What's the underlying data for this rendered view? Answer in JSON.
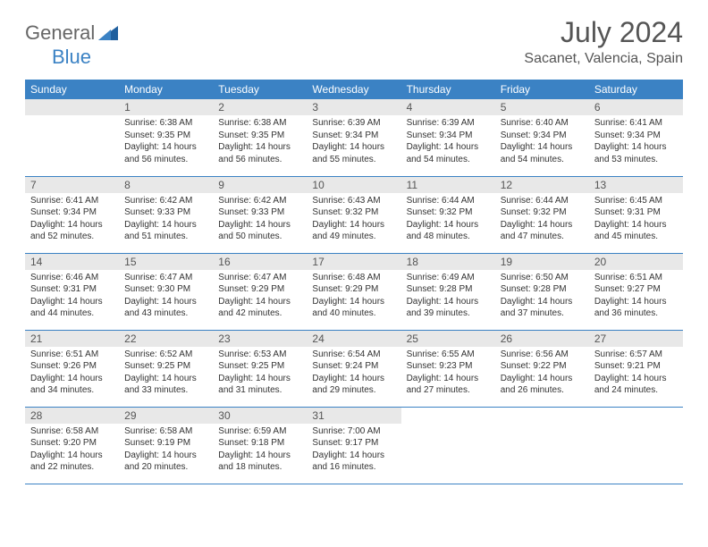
{
  "brand": {
    "part1": "General",
    "part2": "Blue"
  },
  "title": "July 2024",
  "location": "Sacanet, Valencia, Spain",
  "colors": {
    "header_bg": "#3b82c4",
    "header_text": "#ffffff",
    "daynum_bg": "#e8e8e8",
    "text": "#333333",
    "title_color": "#555555"
  },
  "weekdays": [
    "Sunday",
    "Monday",
    "Tuesday",
    "Wednesday",
    "Thursday",
    "Friday",
    "Saturday"
  ],
  "weeks": [
    [
      null,
      {
        "n": "1",
        "sr": "6:38 AM",
        "ss": "9:35 PM",
        "dl": "14 hours and 56 minutes."
      },
      {
        "n": "2",
        "sr": "6:38 AM",
        "ss": "9:35 PM",
        "dl": "14 hours and 56 minutes."
      },
      {
        "n": "3",
        "sr": "6:39 AM",
        "ss": "9:34 PM",
        "dl": "14 hours and 55 minutes."
      },
      {
        "n": "4",
        "sr": "6:39 AM",
        "ss": "9:34 PM",
        "dl": "14 hours and 54 minutes."
      },
      {
        "n": "5",
        "sr": "6:40 AM",
        "ss": "9:34 PM",
        "dl": "14 hours and 54 minutes."
      },
      {
        "n": "6",
        "sr": "6:41 AM",
        "ss": "9:34 PM",
        "dl": "14 hours and 53 minutes."
      }
    ],
    [
      {
        "n": "7",
        "sr": "6:41 AM",
        "ss": "9:34 PM",
        "dl": "14 hours and 52 minutes."
      },
      {
        "n": "8",
        "sr": "6:42 AM",
        "ss": "9:33 PM",
        "dl": "14 hours and 51 minutes."
      },
      {
        "n": "9",
        "sr": "6:42 AM",
        "ss": "9:33 PM",
        "dl": "14 hours and 50 minutes."
      },
      {
        "n": "10",
        "sr": "6:43 AM",
        "ss": "9:32 PM",
        "dl": "14 hours and 49 minutes."
      },
      {
        "n": "11",
        "sr": "6:44 AM",
        "ss": "9:32 PM",
        "dl": "14 hours and 48 minutes."
      },
      {
        "n": "12",
        "sr": "6:44 AM",
        "ss": "9:32 PM",
        "dl": "14 hours and 47 minutes."
      },
      {
        "n": "13",
        "sr": "6:45 AM",
        "ss": "9:31 PM",
        "dl": "14 hours and 45 minutes."
      }
    ],
    [
      {
        "n": "14",
        "sr": "6:46 AM",
        "ss": "9:31 PM",
        "dl": "14 hours and 44 minutes."
      },
      {
        "n": "15",
        "sr": "6:47 AM",
        "ss": "9:30 PM",
        "dl": "14 hours and 43 minutes."
      },
      {
        "n": "16",
        "sr": "6:47 AM",
        "ss": "9:29 PM",
        "dl": "14 hours and 42 minutes."
      },
      {
        "n": "17",
        "sr": "6:48 AM",
        "ss": "9:29 PM",
        "dl": "14 hours and 40 minutes."
      },
      {
        "n": "18",
        "sr": "6:49 AM",
        "ss": "9:28 PM",
        "dl": "14 hours and 39 minutes."
      },
      {
        "n": "19",
        "sr": "6:50 AM",
        "ss": "9:28 PM",
        "dl": "14 hours and 37 minutes."
      },
      {
        "n": "20",
        "sr": "6:51 AM",
        "ss": "9:27 PM",
        "dl": "14 hours and 36 minutes."
      }
    ],
    [
      {
        "n": "21",
        "sr": "6:51 AM",
        "ss": "9:26 PM",
        "dl": "14 hours and 34 minutes."
      },
      {
        "n": "22",
        "sr": "6:52 AM",
        "ss": "9:25 PM",
        "dl": "14 hours and 33 minutes."
      },
      {
        "n": "23",
        "sr": "6:53 AM",
        "ss": "9:25 PM",
        "dl": "14 hours and 31 minutes."
      },
      {
        "n": "24",
        "sr": "6:54 AM",
        "ss": "9:24 PM",
        "dl": "14 hours and 29 minutes."
      },
      {
        "n": "25",
        "sr": "6:55 AM",
        "ss": "9:23 PM",
        "dl": "14 hours and 27 minutes."
      },
      {
        "n": "26",
        "sr": "6:56 AM",
        "ss": "9:22 PM",
        "dl": "14 hours and 26 minutes."
      },
      {
        "n": "27",
        "sr": "6:57 AM",
        "ss": "9:21 PM",
        "dl": "14 hours and 24 minutes."
      }
    ],
    [
      {
        "n": "28",
        "sr": "6:58 AM",
        "ss": "9:20 PM",
        "dl": "14 hours and 22 minutes."
      },
      {
        "n": "29",
        "sr": "6:58 AM",
        "ss": "9:19 PM",
        "dl": "14 hours and 20 minutes."
      },
      {
        "n": "30",
        "sr": "6:59 AM",
        "ss": "9:18 PM",
        "dl": "14 hours and 18 minutes."
      },
      {
        "n": "31",
        "sr": "7:00 AM",
        "ss": "9:17 PM",
        "dl": "14 hours and 16 minutes."
      },
      null,
      null,
      null
    ]
  ],
  "labels": {
    "sunrise": "Sunrise: ",
    "sunset": "Sunset: ",
    "daylight": "Daylight: "
  }
}
